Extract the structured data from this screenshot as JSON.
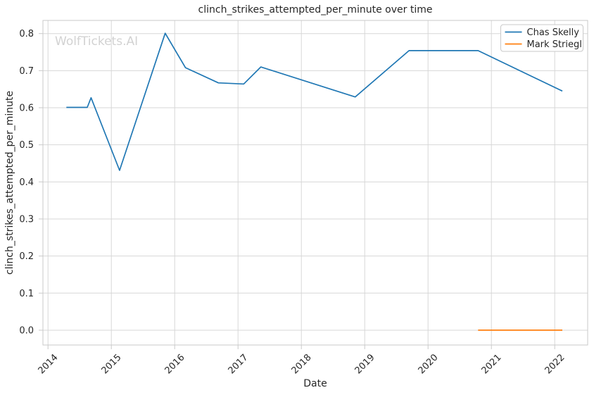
{
  "chart_data": {
    "type": "line",
    "title": "clinch_strikes_attempted_per_minute over time",
    "xlabel": "Date",
    "ylabel": "clinch_strikes_attempted_per_minute",
    "watermark": "WolfTickets.AI",
    "xlim": [
      2013.92,
      2022.52
    ],
    "ylim": [
      -0.04,
      0.8355
    ],
    "x_ticks": [
      2014,
      2015,
      2016,
      2017,
      2018,
      2019,
      2020,
      2021,
      2022
    ],
    "y_ticks": [
      0.0,
      0.1,
      0.2,
      0.3,
      0.4,
      0.5,
      0.6,
      0.7,
      0.8
    ],
    "grid": true,
    "legend": {
      "position": "upper right",
      "entries": [
        "Chas Skelly",
        "Mark Striegl"
      ]
    },
    "series": [
      {
        "name": "Chas Skelly",
        "color": "#1f77b4",
        "x": [
          2014.29,
          2014.62,
          2014.68,
          2015.13,
          2015.85,
          2016.17,
          2016.69,
          2017.09,
          2017.36,
          2018.85,
          2019.7,
          2020.79,
          2022.12
        ],
        "y": [
          0.601,
          0.601,
          0.627,
          0.431,
          0.801,
          0.708,
          0.667,
          0.664,
          0.71,
          0.629,
          0.754,
          0.754,
          0.645
        ]
      },
      {
        "name": "Mark Striegl",
        "color": "#ff7f0e",
        "x": [
          2020.79,
          2022.12
        ],
        "y": [
          0.0,
          0.0
        ]
      }
    ],
    "colors": {
      "grid": "#d7d7d7",
      "spine": "#c9c9c9",
      "tick_mark": "#c9c9c9",
      "text": "#262626",
      "watermark": "#d2d2d2",
      "background": "#ffffff"
    }
  }
}
